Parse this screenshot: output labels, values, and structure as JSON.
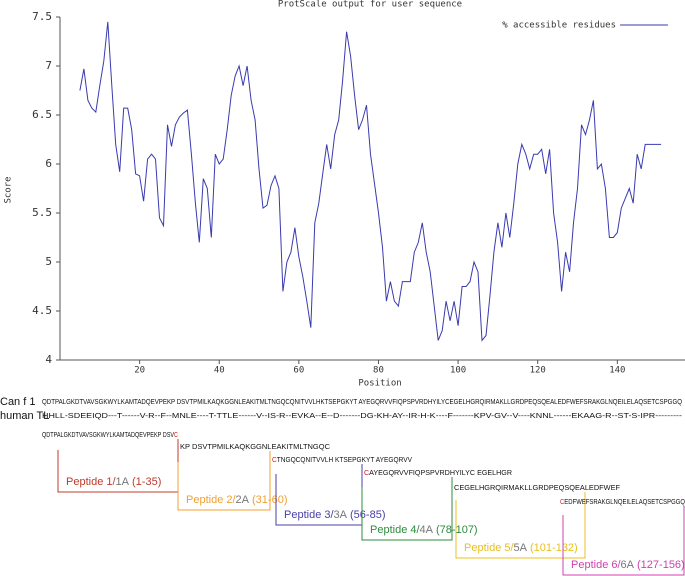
{
  "chart_data": {
    "type": "line",
    "title": "ProtScale output for user sequence",
    "x_label": "Position",
    "y_label": "Score",
    "x": [
      5,
      6,
      7,
      8,
      9,
      10,
      11,
      12,
      13,
      14,
      15,
      16,
      17,
      18,
      19,
      20,
      21,
      22,
      23,
      24,
      25,
      26,
      27,
      28,
      29,
      30,
      31,
      32,
      33,
      34,
      35,
      36,
      37,
      38,
      39,
      40,
      41,
      42,
      43,
      44,
      45,
      46,
      47,
      48,
      49,
      50,
      51,
      52,
      53,
      54,
      55,
      56,
      57,
      58,
      59,
      60,
      61,
      62,
      63,
      64,
      65,
      66,
      67,
      68,
      69,
      70,
      71,
      72,
      73,
      74,
      75,
      76,
      77,
      78,
      79,
      80,
      81,
      82,
      83,
      84,
      85,
      86,
      87,
      88,
      89,
      90,
      91,
      92,
      93,
      94,
      95,
      96,
      97,
      98,
      99,
      100,
      101,
      102,
      103,
      104,
      105,
      106,
      107,
      108,
      109,
      110,
      111,
      112,
      113,
      114,
      115,
      116,
      117,
      118,
      119,
      120,
      121,
      122,
      123,
      124,
      125,
      126,
      127,
      128,
      129,
      130,
      131,
      132,
      133,
      134,
      135,
      136,
      137,
      138,
      139,
      140,
      141,
      142,
      143,
      144,
      145,
      146,
      147,
      148,
      149,
      150,
      151
    ],
    "series": [
      {
        "name": "% accessible residues",
        "color": "#3a3ab0",
        "values": [
          6.75,
          6.97,
          6.65,
          6.57,
          6.53,
          6.8,
          7.05,
          7.45,
          6.8,
          6.2,
          5.92,
          6.57,
          6.57,
          6.35,
          5.9,
          5.88,
          5.62,
          6.05,
          6.1,
          6.05,
          5.45,
          5.37,
          6.4,
          6.18,
          6.4,
          6.48,
          6.52,
          6.55,
          6.1,
          5.6,
          5.2,
          5.85,
          5.75,
          5.25,
          6.1,
          6.0,
          6.05,
          6.35,
          6.7,
          6.9,
          7.0,
          6.8,
          7.0,
          6.65,
          6.45,
          5.95,
          5.55,
          5.58,
          5.78,
          5.88,
          5.75,
          4.7,
          5.0,
          5.1,
          5.35,
          5.05,
          4.85,
          4.6,
          4.33,
          5.4,
          5.6,
          5.9,
          6.2,
          5.95,
          6.3,
          6.45,
          6.85,
          7.35,
          7.1,
          6.7,
          6.35,
          6.45,
          6.6,
          6.1,
          5.8,
          5.5,
          5.15,
          4.6,
          4.8,
          4.6,
          4.55,
          4.8,
          4.8,
          4.8,
          5.1,
          5.2,
          5.4,
          5.1,
          4.9,
          4.55,
          4.2,
          4.3,
          4.6,
          4.4,
          4.6,
          4.35,
          4.75,
          4.75,
          4.8,
          5.0,
          4.9,
          4.2,
          4.25,
          4.65,
          5.1,
          5.4,
          5.15,
          5.5,
          5.25,
          5.6,
          6.0,
          6.2,
          6.1,
          5.95,
          6.1,
          6.1,
          6.15,
          5.9,
          6.15,
          5.5,
          5.2,
          4.7,
          5.1,
          4.9,
          5.4,
          5.75,
          6.4,
          6.3,
          6.45,
          6.65,
          5.95,
          6.0,
          5.75,
          5.25,
          5.25,
          5.3,
          5.55,
          5.65,
          5.75,
          5.6,
          6.1,
          5.95,
          6.2,
          6.2,
          6.2,
          6.2,
          6.2
        ]
      }
    ],
    "xlim": [
      0,
      157
    ],
    "xticks": [
      20,
      40,
      60,
      80,
      100,
      120,
      140
    ],
    "ylim": [
      4,
      7.5
    ],
    "yticks": [
      4,
      4.5,
      5,
      5.5,
      6,
      6.5,
      7,
      7.5
    ],
    "grid": false,
    "legend": "top-right"
  },
  "alignment": [
    {
      "label": "Can f 1",
      "sequence": "QDTPALGKDTVAVSGKWYLKAMTADQEVPEKP DSVTPMILKAQKGGNLEAKITMLTNGQCQNITVVLHKTSEPGKYT AYEGQRVVFIQPSPVRDHYILYCEGELHGRQIRMAKLLGRDPEQSQEALEDFWEFSRAKGLNQEILELAQSETCSPGGQ"
    },
    {
      "label": "human TL",
      "sequence": "HHLL-SDEEIQD---T------V-R--F--MNLE----T-TTLE------V--IS-R--EVKA--E--D-------DG-KH-AY--IR-H-K----F-------KPV-GV--V----KNNL------EKAAG-R--ST-S-IPR---------"
    }
  ],
  "peptides": [
    {
      "parts": [
        {
          "text": "QDTPALGKDTVAVSGKWYLKAMTADQEVPEKP DSV"
        },
        {
          "text": "C",
          "color": "#d02020"
        }
      ],
      "name": "Peptide 1/",
      "alt": "1A",
      "range": "(1-35)",
      "color": "#c0392b"
    },
    {
      "parts": [
        {
          "text": "KP DSVTPMILKAQKGGNLEAKITMLTNGQC"
        }
      ],
      "name": "Peptide 2/",
      "alt": "2A",
      "range": "(31-60)",
      "color": "#f0a030"
    },
    {
      "parts": [
        {
          "text": "C",
          "color": "#d02020"
        },
        {
          "text": "TNGQCQNITVVLH KTSEPGKYT AYEGQRVV"
        }
      ],
      "name": "Peptide 3/",
      "alt": "3A",
      "range": "(56-85)",
      "color": "#4a40a8"
    },
    {
      "parts": [
        {
          "text": "C",
          "color": "#d02020"
        },
        {
          "text": "AYEGQRVVFIQPSPVRDHYILYC EGELHGR"
        }
      ],
      "name": "Peptide 4/",
      "alt": "4A",
      "range": "(78-107)",
      "color": "#2e8b3e"
    },
    {
      "parts": [
        {
          "text": "CEGELHGRQIRMAKLLGRDPEQSQEALEDFWEF"
        }
      ],
      "name": "Peptide 5/",
      "alt": "5A",
      "range": "(101-132)",
      "color": "#e8c020"
    },
    {
      "parts": [
        {
          "text": "C",
          "color": "#d02020"
        },
        {
          "text": "EDFWEFSRAKGLNQEILELAQSETCSPGGQ"
        }
      ],
      "name": "Peptide 6/",
      "alt": "6A",
      "range": "(127-156)",
      "color": "#d040b0"
    }
  ]
}
